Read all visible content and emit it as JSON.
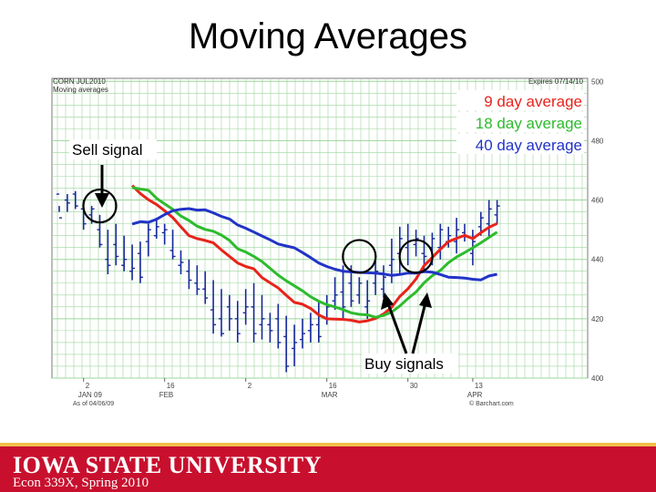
{
  "slide": {
    "title": "Moving Averages",
    "footer_university": "IOWA STATE UNIVERSITY",
    "footer_course": "Econ 339X, Spring 2010",
    "colors": {
      "footer": "#c8102e",
      "stripe": "#f1be48"
    }
  },
  "chart_data": {
    "type": "line",
    "header_left_1": "CORN JUL2010",
    "header_left_2": "Moving averages",
    "header_right": "Expires 07/14/10",
    "as_of": "As of 04/06/09",
    "source": "© Barchart.com",
    "ylim": [
      400,
      501
    ],
    "yticks": [
      400,
      420,
      440,
      460,
      480,
      500
    ],
    "ytick_labels": [
      "400",
      "420",
      "440",
      "460",
      "480",
      "500"
    ],
    "x_labels": [
      {
        "day": 3,
        "top": "2",
        "bottom": "JAN 09"
      },
      {
        "day": 13,
        "top": "16",
        "bottom": "FEB"
      },
      {
        "day": 23,
        "top": "2",
        "bottom": ""
      },
      {
        "day": 33,
        "top": "16",
        "bottom": "MAR"
      },
      {
        "day": 43,
        "top": "30",
        "bottom": ""
      },
      {
        "day": 51,
        "top": "13",
        "bottom": "APR"
      }
    ],
    "n_days": 55,
    "series": [
      {
        "name": "9 day average",
        "color": "#e8231b",
        "values": [
          464.9,
          462.2,
          460.1,
          458.5,
          456.4,
          454.1,
          451.0,
          448.0,
          447.0,
          446.4,
          445.6,
          443.2,
          441.0,
          438.8,
          437.6,
          436.8,
          433.9,
          432.1,
          430.4,
          427.9,
          425.5,
          424.9,
          423.5,
          421.3,
          420.0,
          419.9,
          419.8,
          419.5,
          418.9,
          419.3,
          420.1,
          421.6,
          423.9,
          427.5,
          430.1,
          433.4,
          437.9,
          440.6,
          443.4,
          446.0,
          447.1,
          448.1,
          447.0,
          449.0,
          450.8,
          452.1
        ]
      },
      {
        "name": "18 day average",
        "color": "#2dbb2d",
        "values": [
          464.2,
          463.7,
          463.3,
          460.6,
          458.7,
          456.9,
          454.6,
          453.1,
          451.2,
          450.1,
          449.5,
          448.2,
          446.4,
          443.6,
          442.5,
          441.0,
          439.3,
          437.0,
          434.7,
          432.8,
          431.1,
          429.4,
          427.4,
          425.9,
          424.7,
          424.0,
          423.1,
          422.0,
          421.5,
          421.3,
          420.5,
          421.1,
          422.3,
          424.3,
          426.8,
          429.0,
          432.1,
          434.5,
          436.3,
          438.9,
          440.8,
          442.3,
          443.9,
          445.6,
          447.4,
          449.2
        ]
      },
      {
        "name": "40 day average",
        "color": "#2233c8",
        "values": [
          451.9,
          452.7,
          452.5,
          453.5,
          455.1,
          456.4,
          456.9,
          457.1,
          456.6,
          456.7,
          455.7,
          454.5,
          453.6,
          451.6,
          450.5,
          449.2,
          447.9,
          446.6,
          445.2,
          444.5,
          443.9,
          442.3,
          440.6,
          438.8,
          437.6,
          436.7,
          436.0,
          435.8,
          435.6,
          435.5,
          435.4,
          435.1,
          434.6,
          434.9,
          435.4,
          435.4,
          435.9,
          435.7,
          434.9,
          434.0,
          433.9,
          433.7,
          433.3,
          433.1,
          434.4,
          435.0
        ]
      }
    ],
    "bars": [
      [
        458,
        456,
        462,
        454
      ],
      [
        462,
        456,
        460,
        459
      ],
      [
        463,
        457,
        462,
        458
      ],
      [
        460,
        450,
        457,
        452
      ],
      [
        458,
        452,
        455,
        457
      ],
      [
        455,
        444,
        450,
        445
      ],
      [
        450,
        435,
        440,
        438
      ],
      [
        452,
        438,
        445,
        441
      ],
      [
        448,
        436,
        438,
        440
      ],
      [
        445,
        433,
        436,
        437
      ],
      [
        446,
        432,
        442,
        434
      ],
      [
        452,
        441,
        446,
        450
      ],
      [
        454,
        447,
        448,
        451
      ],
      [
        452,
        445,
        449,
        450
      ],
      [
        450,
        440,
        443,
        441
      ],
      [
        443,
        435,
        438,
        439
      ],
      [
        440,
        430,
        436,
        433
      ],
      [
        438,
        428,
        432,
        430
      ],
      [
        436,
        425,
        430,
        427
      ],
      [
        433,
        415,
        423,
        418
      ],
      [
        430,
        414,
        420,
        415
      ],
      [
        428,
        416,
        424,
        420
      ],
      [
        426,
        412,
        420,
        415
      ],
      [
        430,
        418,
        422,
        424
      ],
      [
        432,
        412,
        424,
        415
      ],
      [
        428,
        413,
        418,
        420
      ],
      [
        422,
        412,
        418,
        416
      ],
      [
        425,
        410,
        420,
        412
      ],
      [
        421,
        402,
        414,
        404
      ],
      [
        418,
        404,
        410,
        412
      ],
      [
        420,
        410,
        413,
        415
      ],
      [
        422,
        412,
        416,
        418
      ],
      [
        426,
        412,
        418,
        414
      ],
      [
        428,
        418,
        420,
        424
      ],
      [
        434,
        423,
        426,
        428
      ],
      [
        438,
        420,
        429,
        424
      ],
      [
        438,
        424,
        432,
        426
      ],
      [
        434,
        425,
        428,
        432
      ],
      [
        433,
        420,
        424,
        426
      ],
      [
        440,
        428,
        432,
        436
      ],
      [
        438,
        427,
        430,
        434
      ],
      [
        447,
        432,
        438,
        440
      ],
      [
        451,
        435,
        442,
        447
      ],
      [
        452,
        438,
        444,
        446
      ],
      [
        450,
        441,
        445,
        447
      ],
      [
        448,
        436,
        442,
        441
      ],
      [
        449,
        438,
        444,
        447
      ],
      [
        452,
        440,
        444,
        450
      ],
      [
        451,
        444,
        446,
        448
      ],
      [
        454,
        442,
        446,
        450
      ],
      [
        452,
        446,
        449,
        448
      ],
      [
        450,
        438,
        442,
        446
      ],
      [
        456,
        448,
        451,
        454
      ],
      [
        460,
        447,
        452,
        457
      ],
      [
        460,
        452,
        455,
        458
      ]
    ],
    "legend": [
      "9 day average",
      "18 day average",
      "40 day average"
    ],
    "annotations": [
      {
        "name": "sell-signal-label",
        "text": "Sell signal"
      },
      {
        "name": "buy-signals-label",
        "text": "Buy signals"
      }
    ],
    "signal_circles": [
      {
        "name": "sell-signal-circle",
        "day": 5,
        "value": 458
      },
      {
        "name": "buy-signal-circle-1",
        "day": 37,
        "value": 441
      },
      {
        "name": "buy-signal-circle-2",
        "day": 44,
        "value": 441
      }
    ]
  }
}
